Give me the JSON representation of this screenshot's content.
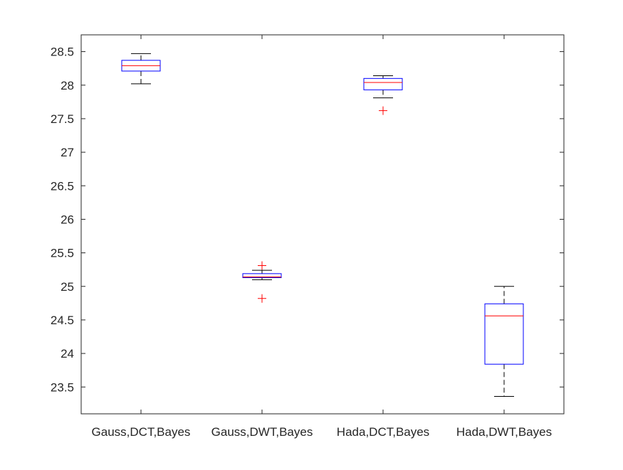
{
  "chart_data": {
    "type": "boxplot",
    "title": "",
    "xlabel": "",
    "ylabel": "",
    "ylim": [
      23.1,
      28.75
    ],
    "yticks": [
      23.5,
      24,
      24.5,
      25,
      25.5,
      26,
      26.5,
      27,
      27.5,
      28,
      28.5
    ],
    "ytick_labels": [
      "23.5",
      "24",
      "24.5",
      "25",
      "25.5",
      "26",
      "26.5",
      "27",
      "27.5",
      "28",
      "28.5"
    ],
    "categories": [
      "Gauss,DCT,Bayes",
      "Gauss,DWT,Bayes",
      "Hada,DCT,Bayes",
      "Hada,DWT,Bayes"
    ],
    "boxes": [
      {
        "category": "Gauss,DCT,Bayes",
        "whisker_low": 28.02,
        "q1": 28.21,
        "median": 28.29,
        "q3": 28.37,
        "whisker_high": 28.47,
        "outliers": []
      },
      {
        "category": "Gauss,DWT,Bayes",
        "whisker_low": 25.1,
        "q1": 25.13,
        "median": 25.14,
        "q3": 25.19,
        "whisker_high": 25.24,
        "outliers": [
          25.31,
          24.82
        ]
      },
      {
        "category": "Hada,DCT,Bayes",
        "whisker_low": 27.81,
        "q1": 27.93,
        "median": 28.04,
        "q3": 28.1,
        "whisker_high": 28.14,
        "outliers": [
          27.62
        ]
      },
      {
        "category": "Hada,DWT,Bayes",
        "whisker_low": 23.36,
        "q1": 23.84,
        "median": 24.56,
        "q3": 24.74,
        "whisker_high": 25.0,
        "outliers": []
      }
    ],
    "grid": false,
    "legend": "none",
    "colors": {
      "box": "#0000ff",
      "median": "#ff0000",
      "whisker": "#000000",
      "outlier": "#ff0000",
      "axis": "#262626"
    }
  }
}
